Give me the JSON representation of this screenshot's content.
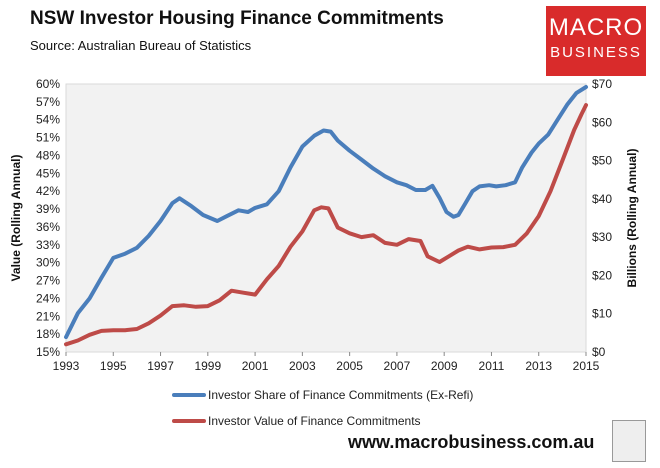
{
  "page": {
    "title": "NSW Investor Housing Finance Commitments",
    "subtitle": "Source: Australian Bureau of Statistics",
    "logo_line1": "MACRO",
    "logo_line2": "BUSINESS",
    "footer_url": "www.macrobusiness.com.au"
  },
  "colors": {
    "share": "#4a7ebb",
    "value": "#be4b48",
    "plot_bg": "#f2f2f2",
    "logo_bg": "#d92b2b"
  },
  "chart_data": {
    "type": "line",
    "title": "NSW Investor Housing Finance Commitments",
    "ylabel": "Value (Rolling Annual)",
    "y2label": "Billions (Rolling Annual)",
    "xlim": [
      1993,
      2015
    ],
    "ylim": [
      15,
      60
    ],
    "y2lim": [
      0,
      70
    ],
    "x_ticks": [
      "1993",
      "1995",
      "1997",
      "1999",
      "2001",
      "2003",
      "2005",
      "2007",
      "2009",
      "2011",
      "2013",
      "2015"
    ],
    "y_ticks": [
      "15%",
      "18%",
      "21%",
      "24%",
      "27%",
      "30%",
      "33%",
      "36%",
      "39%",
      "42%",
      "45%",
      "48%",
      "51%",
      "54%",
      "57%",
      "60%"
    ],
    "y2_ticks": [
      "$0",
      "$10",
      "$20",
      "$30",
      "$40",
      "$50",
      "$60",
      "$70"
    ],
    "legend_position": "bottom",
    "series": [
      {
        "name": "Investor Share of Finance Commitments (Ex-Refi)",
        "axis": "left",
        "x": [
          1993.0,
          1993.5,
          1994.0,
          1994.5,
          1995.0,
          1995.5,
          1996.0,
          1996.5,
          1997.0,
          1997.5,
          1997.8,
          1998.3,
          1998.8,
          1999.4,
          1999.8,
          2000.3,
          2000.7,
          2001.0,
          2001.5,
          2002.0,
          2002.5,
          2003.0,
          2003.5,
          2003.9,
          2004.2,
          2004.5,
          2005.0,
          2005.5,
          2006.0,
          2006.5,
          2007.0,
          2007.4,
          2007.8,
          2008.2,
          2008.5,
          2008.8,
          2009.1,
          2009.4,
          2009.6,
          2009.9,
          2010.2,
          2010.5,
          2010.9,
          2011.2,
          2011.6,
          2012.0,
          2012.3,
          2012.7,
          2013.0,
          2013.4,
          2013.8,
          2014.2,
          2014.6,
          2015.0
        ],
        "values": [
          17.5,
          21.5,
          24.0,
          27.5,
          30.8,
          31.5,
          32.5,
          34.5,
          37.0,
          40.0,
          40.8,
          39.5,
          38.0,
          37.0,
          37.8,
          38.8,
          38.5,
          39.2,
          39.8,
          42.0,
          46.0,
          49.5,
          51.3,
          52.2,
          52.0,
          50.5,
          48.8,
          47.3,
          45.8,
          44.5,
          43.5,
          43.0,
          42.2,
          42.2,
          42.9,
          40.9,
          38.5,
          37.7,
          38.0,
          40.0,
          42.0,
          42.8,
          43.0,
          42.8,
          43.0,
          43.5,
          46.0,
          48.5,
          50.0,
          51.5,
          54.0,
          56.5,
          58.5,
          59.5
        ]
      },
      {
        "name": "Investor Value of Finance Commitments",
        "axis": "right",
        "x": [
          1993.0,
          1993.5,
          1994.0,
          1994.5,
          1995.0,
          1995.5,
          1996.0,
          1996.5,
          1997.0,
          1997.5,
          1998.0,
          1998.5,
          1999.0,
          1999.5,
          2000.0,
          2000.5,
          2001.0,
          2001.5,
          2002.0,
          2002.5,
          2003.0,
          2003.5,
          2003.8,
          2004.1,
          2004.5,
          2005.0,
          2005.5,
          2006.0,
          2006.5,
          2007.0,
          2007.5,
          2008.0,
          2008.3,
          2008.8,
          2009.2,
          2009.6,
          2010.0,
          2010.5,
          2011.0,
          2011.5,
          2012.0,
          2012.5,
          2013.0,
          2013.5,
          2014.0,
          2014.5,
          2014.8,
          2015.0
        ],
        "values": [
          2.0,
          3.0,
          4.5,
          5.5,
          5.7,
          5.7,
          6.0,
          7.5,
          9.5,
          12.0,
          12.2,
          11.8,
          12.0,
          13.5,
          16.0,
          15.5,
          15.0,
          19.0,
          22.5,
          27.5,
          31.5,
          37.0,
          37.8,
          37.5,
          32.5,
          31.0,
          30.0,
          30.5,
          28.5,
          28.0,
          29.5,
          29.0,
          25.0,
          23.5,
          25.0,
          26.5,
          27.5,
          26.8,
          27.3,
          27.4,
          28.0,
          31.0,
          35.5,
          42.0,
          50.0,
          58.0,
          62.0,
          64.5
        ]
      }
    ]
  }
}
